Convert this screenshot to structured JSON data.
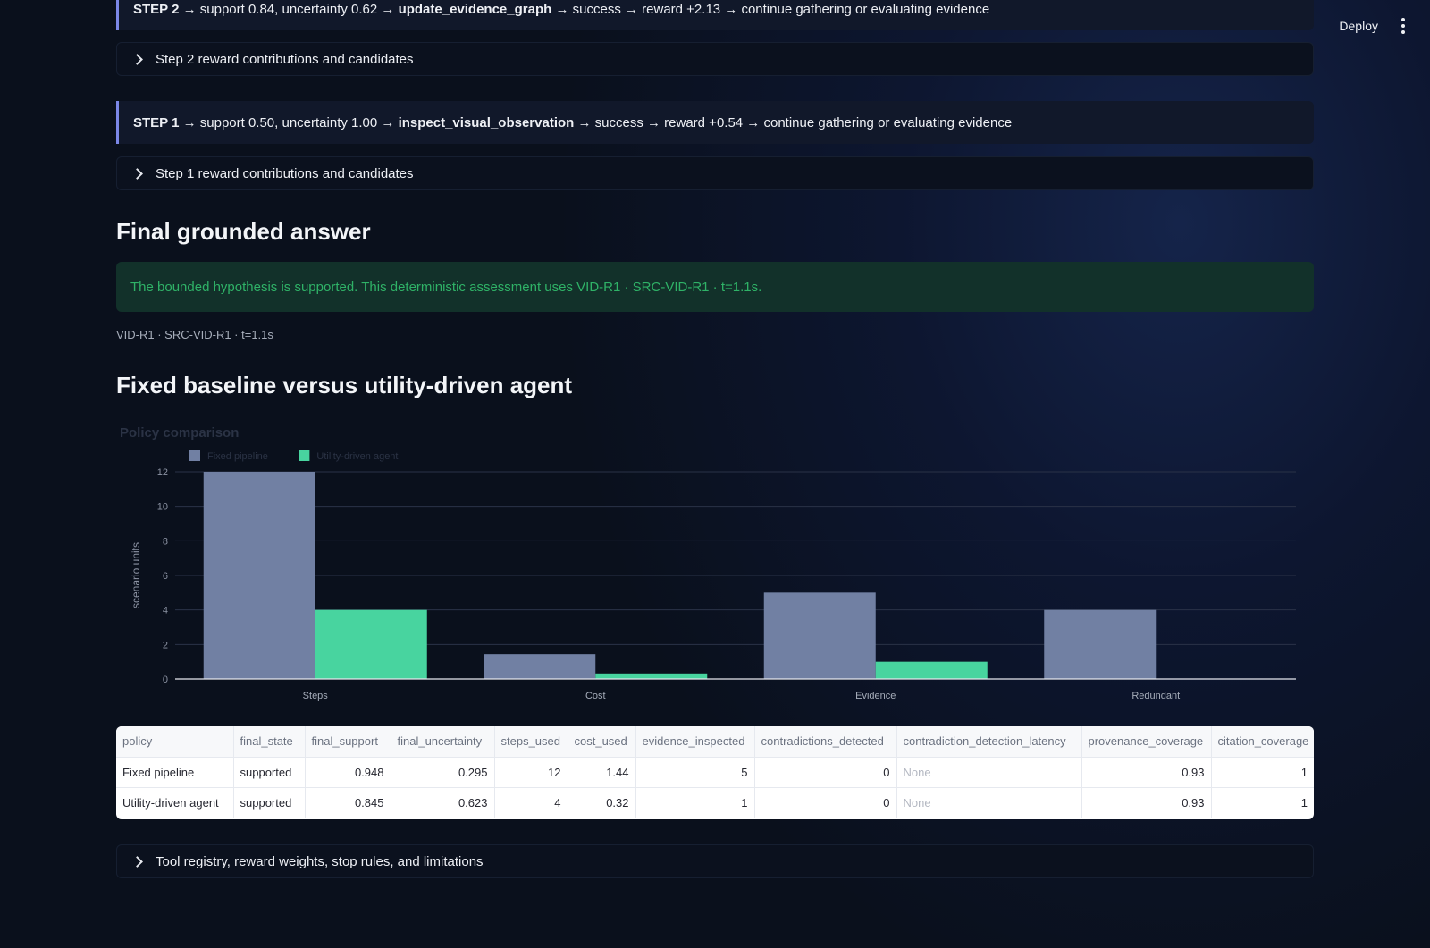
{
  "toolbar": {
    "deploy_label": "Deploy"
  },
  "steps": [
    {
      "tag": "STEP 2",
      "pre": " → support 0.84, uncertainty 0.62 → ",
      "tool": "update_evidence_graph",
      "post": " → success → reward +2.13 → continue gathering or evaluating evidence",
      "expander": "Step 2 reward contributions and candidates"
    },
    {
      "tag": "STEP 1",
      "pre": " → support 0.50, uncertainty 1.00 → ",
      "tool": "inspect_visual_observation",
      "post": " → success → reward +0.54 → continue gathering or evaluating evidence",
      "expander": "Step 1 reward contributions and candidates"
    }
  ],
  "final": {
    "heading": "Final grounded answer",
    "message": "The bounded hypothesis is supported. This deterministic assessment uses VID-R1 · SRC-VID-R1 · t=1.1s.",
    "caption": "VID-R1 · SRC-VID-R1 · t=1.1s"
  },
  "comparison": {
    "heading": "Fixed baseline versus utility-driven agent"
  },
  "chart_data": {
    "type": "bar",
    "title": "Policy comparison",
    "categories": [
      "Steps",
      "Cost",
      "Evidence",
      "Redundant"
    ],
    "series": [
      {
        "name": "Fixed pipeline",
        "values": [
          12,
          1.44,
          5,
          4
        ],
        "color": "#7180a3"
      },
      {
        "name": "Utility-driven agent",
        "values": [
          4,
          0.32,
          1,
          0
        ],
        "color": "#48d49f"
      }
    ],
    "ylabel": "scenario units",
    "ylim": [
      0,
      12
    ],
    "yticks": [
      0,
      2,
      4,
      6,
      8,
      10,
      12
    ],
    "grid": true,
    "legend": "top-left"
  },
  "table": {
    "columns": [
      "policy",
      "final_state",
      "final_support",
      "final_uncertainty",
      "steps_used",
      "cost_used",
      "evidence_inspected",
      "contradictions_detected",
      "contradiction_detection_latency",
      "provenance_coverage",
      "citation_coverage"
    ],
    "rows": [
      [
        "Fixed pipeline",
        "supported",
        "0.948",
        "0.295",
        "12",
        "1.44",
        "5",
        "0",
        "None",
        "0.93",
        "1"
      ],
      [
        "Utility-driven agent",
        "supported",
        "0.845",
        "0.623",
        "4",
        "0.32",
        "1",
        "0",
        "None",
        "0.93",
        "1"
      ]
    ]
  },
  "footer_expander": "Tool registry, reward weights, stop rules, and limitations"
}
